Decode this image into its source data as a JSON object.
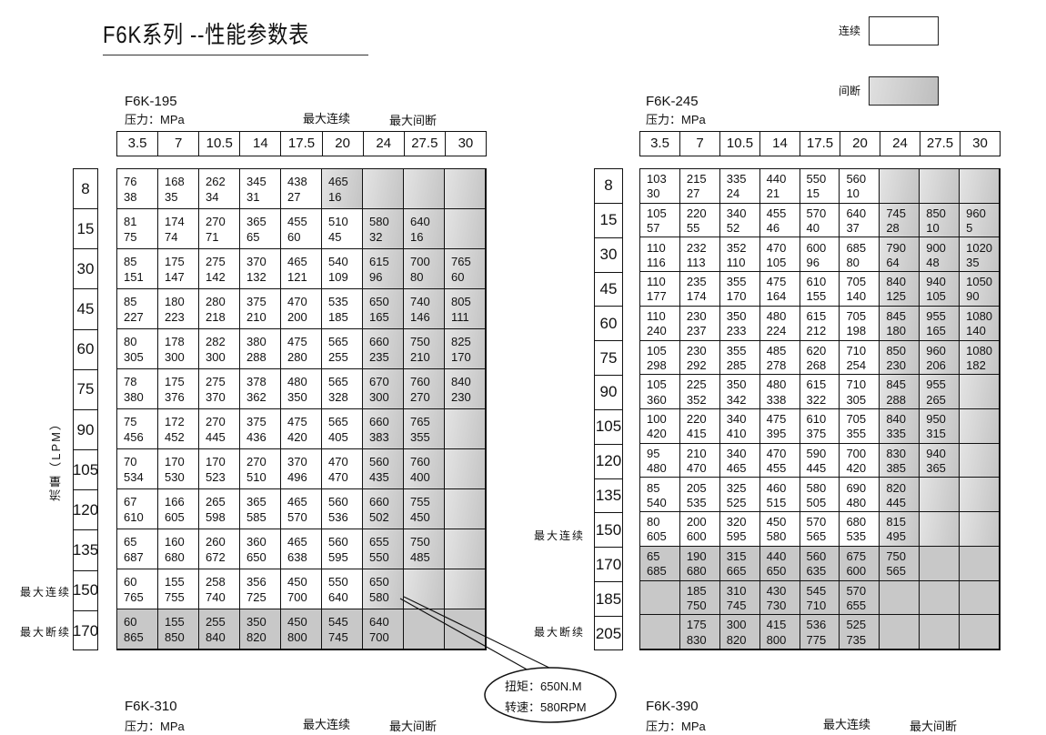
{
  "title": "F6K系列 --性能参数表",
  "legend": {
    "continuous": "连续",
    "intermittent": "间断",
    "continuous_color": "#ffffff",
    "intermittent_color": "#c8c8c8"
  },
  "callout": {
    "torque": "扭矩：650N.M",
    "speed": "转速：580RPM"
  },
  "tables": [
    {
      "model": "F6K-195",
      "pressure_label": "压力：MPa",
      "max_cont": "最大连续",
      "max_int": "最大间断",
      "flow_label": "流量（LPM）",
      "row_max_cont": "最大连续",
      "row_max_int": "最大断续",
      "pressures": [
        "3.5",
        "7",
        "10.5",
        "14",
        "17.5",
        "20",
        "24",
        "27.5",
        "30"
      ],
      "flows": [
        "8",
        "15",
        "30",
        "45",
        "60",
        "75",
        "90",
        "105",
        "120",
        "135",
        "150",
        "170"
      ],
      "shade_from": [
        5,
        6,
        6,
        6,
        6,
        6,
        6,
        6,
        6,
        6,
        6,
        0
      ],
      "cells": [
        [
          [
            "76",
            "38"
          ],
          [
            "168",
            "35"
          ],
          [
            "262",
            "34"
          ],
          [
            "345",
            "31"
          ],
          [
            "438",
            "27"
          ],
          [
            "465",
            "16"
          ],
          null,
          null,
          null
        ],
        [
          [
            "81",
            "75"
          ],
          [
            "174",
            "74"
          ],
          [
            "270",
            "71"
          ],
          [
            "365",
            "65"
          ],
          [
            "455",
            "60"
          ],
          [
            "510",
            "45"
          ],
          [
            "580",
            "32"
          ],
          [
            "640",
            "16"
          ],
          null
        ],
        [
          [
            "85",
            "151"
          ],
          [
            "175",
            "147"
          ],
          [
            "275",
            "142"
          ],
          [
            "370",
            "132"
          ],
          [
            "465",
            "121"
          ],
          [
            "540",
            "109"
          ],
          [
            "615",
            "96"
          ],
          [
            "700",
            "80"
          ],
          [
            "765",
            "60"
          ]
        ],
        [
          [
            "85",
            "227"
          ],
          [
            "180",
            "223"
          ],
          [
            "280",
            "218"
          ],
          [
            "375",
            "210"
          ],
          [
            "470",
            "200"
          ],
          [
            "535",
            "185"
          ],
          [
            "650",
            "165"
          ],
          [
            "740",
            "146"
          ],
          [
            "805",
            "111"
          ]
        ],
        [
          [
            "80",
            "305"
          ],
          [
            "178",
            "300"
          ],
          [
            "282",
            "300"
          ],
          [
            "380",
            "288"
          ],
          [
            "475",
            "280"
          ],
          [
            "565",
            "255"
          ],
          [
            "660",
            "235"
          ],
          [
            "750",
            "210"
          ],
          [
            "825",
            "170"
          ]
        ],
        [
          [
            "78",
            "380"
          ],
          [
            "175",
            "376"
          ],
          [
            "275",
            "370"
          ],
          [
            "378",
            "362"
          ],
          [
            "480",
            "350"
          ],
          [
            "565",
            "328"
          ],
          [
            "670",
            "300"
          ],
          [
            "760",
            "270"
          ],
          [
            "840",
            "230"
          ]
        ],
        [
          [
            "75",
            "456"
          ],
          [
            "172",
            "452"
          ],
          [
            "270",
            "445"
          ],
          [
            "375",
            "436"
          ],
          [
            "475",
            "420"
          ],
          [
            "565",
            "405"
          ],
          [
            "660",
            "383"
          ],
          [
            "765",
            "355"
          ],
          null
        ],
        [
          [
            "70",
            "534"
          ],
          [
            "170",
            "530"
          ],
          [
            "170",
            "523"
          ],
          [
            "270",
            "510"
          ],
          [
            "370",
            "496"
          ],
          [
            "470",
            "470"
          ],
          [
            "560",
            "435"
          ],
          [
            "760",
            "400"
          ],
          null
        ],
        [
          [
            "67",
            "610"
          ],
          [
            "166",
            "605"
          ],
          [
            "265",
            "598"
          ],
          [
            "365",
            "585"
          ],
          [
            "465",
            "570"
          ],
          [
            "560",
            "536"
          ],
          [
            "660",
            "502"
          ],
          [
            "755",
            "450"
          ],
          null
        ],
        [
          [
            "65",
            "687"
          ],
          [
            "160",
            "680"
          ],
          [
            "260",
            "672"
          ],
          [
            "360",
            "650"
          ],
          [
            "465",
            "638"
          ],
          [
            "560",
            "595"
          ],
          [
            "655",
            "550"
          ],
          [
            "750",
            "485"
          ],
          null
        ],
        [
          [
            "60",
            "765"
          ],
          [
            "155",
            "755"
          ],
          [
            "258",
            "740"
          ],
          [
            "356",
            "725"
          ],
          [
            "450",
            "700"
          ],
          [
            "550",
            "640"
          ],
          [
            "650",
            "580"
          ],
          null,
          null
        ],
        [
          [
            "60",
            "865"
          ],
          [
            "155",
            "850"
          ],
          [
            "255",
            "840"
          ],
          [
            "350",
            "820"
          ],
          [
            "450",
            "800"
          ],
          [
            "545",
            "745"
          ],
          [
            "640",
            "700"
          ],
          null,
          null
        ]
      ]
    },
    {
      "model": "F6K-245",
      "pressure_label": "压力：MPa",
      "row_max_cont": "最大连续",
      "row_max_int": "最大断续",
      "pressures": [
        "3.5",
        "7",
        "10.5",
        "14",
        "17.5",
        "20",
        "24",
        "27.5",
        "30"
      ],
      "flows": [
        "8",
        "15",
        "30",
        "45",
        "60",
        "75",
        "90",
        "105",
        "120",
        "135",
        "150",
        "170",
        "185",
        "205"
      ],
      "shade_from": [
        6,
        6,
        6,
        6,
        6,
        6,
        6,
        6,
        6,
        6,
        6,
        0,
        0,
        0
      ],
      "cells": [
        [
          [
            "103",
            "30"
          ],
          [
            "215",
            "27"
          ],
          [
            "335",
            "24"
          ],
          [
            "440",
            "21"
          ],
          [
            "550",
            "15"
          ],
          [
            "560",
            "10"
          ],
          null,
          null,
          null
        ],
        [
          [
            "105",
            "57"
          ],
          [
            "220",
            "55"
          ],
          [
            "340",
            "52"
          ],
          [
            "455",
            "46"
          ],
          [
            "570",
            "40"
          ],
          [
            "640",
            "37"
          ],
          [
            "745",
            "28"
          ],
          [
            "850",
            "10"
          ],
          [
            "960",
            "5"
          ]
        ],
        [
          [
            "110",
            "116"
          ],
          [
            "232",
            "113"
          ],
          [
            "352",
            "110"
          ],
          [
            "470",
            "105"
          ],
          [
            "600",
            "96"
          ],
          [
            "685",
            "80"
          ],
          [
            "790",
            "64"
          ],
          [
            "900",
            "48"
          ],
          [
            "1020",
            "35"
          ]
        ],
        [
          [
            "110",
            "177"
          ],
          [
            "235",
            "174"
          ],
          [
            "355",
            "170"
          ],
          [
            "475",
            "164"
          ],
          [
            "610",
            "155"
          ],
          [
            "705",
            "140"
          ],
          [
            "840",
            "125"
          ],
          [
            "940",
            "105"
          ],
          [
            "1050",
            "90"
          ]
        ],
        [
          [
            "110",
            "240"
          ],
          [
            "230",
            "237"
          ],
          [
            "350",
            "233"
          ],
          [
            "480",
            "224"
          ],
          [
            "615",
            "212"
          ],
          [
            "705",
            "198"
          ],
          [
            "845",
            "180"
          ],
          [
            "955",
            "165"
          ],
          [
            "1080",
            "140"
          ]
        ],
        [
          [
            "105",
            "298"
          ],
          [
            "230",
            "292"
          ],
          [
            "355",
            "285"
          ],
          [
            "485",
            "278"
          ],
          [
            "620",
            "268"
          ],
          [
            "710",
            "254"
          ],
          [
            "850",
            "230"
          ],
          [
            "960",
            "206"
          ],
          [
            "1080",
            "182"
          ]
        ],
        [
          [
            "105",
            "360"
          ],
          [
            "225",
            "352"
          ],
          [
            "350",
            "342"
          ],
          [
            "480",
            "338"
          ],
          [
            "615",
            "322"
          ],
          [
            "710",
            "305"
          ],
          [
            "845",
            "288"
          ],
          [
            "955",
            "265"
          ],
          null
        ],
        [
          [
            "100",
            "420"
          ],
          [
            "220",
            "415"
          ],
          [
            "340",
            "410"
          ],
          [
            "475",
            "395"
          ],
          [
            "610",
            "375"
          ],
          [
            "705",
            "355"
          ],
          [
            "840",
            "335"
          ],
          [
            "950",
            "315"
          ],
          null
        ],
        [
          [
            "95",
            "480"
          ],
          [
            "210",
            "470"
          ],
          [
            "340",
            "465"
          ],
          [
            "470",
            "455"
          ],
          [
            "590",
            "445"
          ],
          [
            "700",
            "420"
          ],
          [
            "830",
            "385"
          ],
          [
            "940",
            "365"
          ],
          null
        ],
        [
          [
            "85",
            "540"
          ],
          [
            "205",
            "535"
          ],
          [
            "325",
            "525"
          ],
          [
            "460",
            "515"
          ],
          [
            "580",
            "505"
          ],
          [
            "690",
            "480"
          ],
          [
            "820",
            "445"
          ],
          null,
          null
        ],
        [
          [
            "80",
            "605"
          ],
          [
            "200",
            "600"
          ],
          [
            "320",
            "595"
          ],
          [
            "450",
            "580"
          ],
          [
            "570",
            "565"
          ],
          [
            "680",
            "535"
          ],
          [
            "815",
            "495"
          ],
          null,
          null
        ],
        [
          [
            "65",
            "685"
          ],
          [
            "190",
            "680"
          ],
          [
            "315",
            "665"
          ],
          [
            "440",
            "650"
          ],
          [
            "560",
            "635"
          ],
          [
            "675",
            "600"
          ],
          [
            "750",
            "565"
          ],
          null,
          null
        ],
        [
          null,
          [
            "185",
            "750"
          ],
          [
            "310",
            "745"
          ],
          [
            "430",
            "730"
          ],
          [
            "545",
            "710"
          ],
          [
            "570",
            "655"
          ],
          null,
          null,
          null
        ],
        [
          null,
          [
            "175",
            "830"
          ],
          [
            "300",
            "820"
          ],
          [
            "415",
            "800"
          ],
          [
            "536",
            "775"
          ],
          [
            "525",
            "735"
          ],
          null,
          null,
          null
        ]
      ]
    }
  ],
  "bottom": [
    {
      "model": "F6K-310",
      "pressure_label": "压力：MPa",
      "max_cont": "最大连续",
      "max_int": "最大间断"
    },
    {
      "model": "F6K-390",
      "pressure_label": "压力：MPa",
      "max_cont": "最大连续",
      "max_int": "最大间断"
    }
  ]
}
